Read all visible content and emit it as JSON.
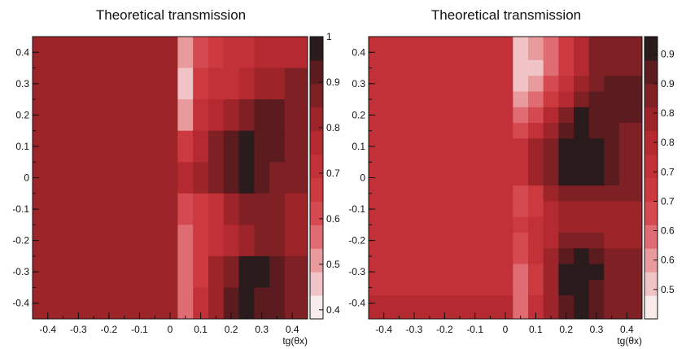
{
  "chart_data": [
    {
      "type": "heatmap",
      "title": "Theoretical transmission",
      "xlabel": "tg(θx)",
      "ylabel": "",
      "xlim": [
        -0.45,
        0.45
      ],
      "ylim": [
        -0.45,
        0.45
      ],
      "x_ticks": [
        "-0.4",
        "-0.3",
        "-0.2",
        "-0.1",
        "0",
        "0.1",
        "0.2",
        "0.3",
        "0.4"
      ],
      "y_ticks": [
        "-0.4",
        "-0.3",
        "-0.2",
        "-0.1",
        "0",
        "0.1",
        "0.2",
        "0.3",
        "0.4"
      ],
      "colorbar": {
        "min": 0.38,
        "max": 1.0,
        "tick_labels": [
          "1",
          "0.9",
          "0.8",
          "0.7",
          "0.6",
          "0.5",
          "0.4"
        ],
        "tick_values": [
          1.0,
          0.9,
          0.8,
          0.7,
          0.6,
          0.5,
          0.4
        ]
      },
      "x": [
        -0.4,
        -0.3,
        -0.2,
        -0.1,
        0,
        0.05,
        0.1,
        0.15,
        0.2,
        0.25,
        0.3,
        0.35,
        0.4
      ],
      "y": [
        0.4,
        0.3,
        0.2,
        0.1,
        0,
        -0.1,
        -0.2,
        -0.3,
        -0.4
      ],
      "z": [
        [
          0.8,
          0.8,
          0.8,
          0.8,
          0.8,
          0.5,
          0.62,
          0.66,
          0.7,
          0.73,
          0.76,
          0.78,
          0.78
        ],
        [
          0.8,
          0.8,
          0.8,
          0.8,
          0.8,
          0.48,
          0.64,
          0.7,
          0.74,
          0.78,
          0.8,
          0.82,
          0.85
        ],
        [
          0.8,
          0.8,
          0.8,
          0.8,
          0.8,
          0.52,
          0.7,
          0.76,
          0.82,
          0.87,
          0.9,
          0.9,
          0.88
        ],
        [
          0.8,
          0.8,
          0.8,
          0.8,
          0.8,
          0.68,
          0.78,
          0.86,
          0.92,
          0.97,
          0.93,
          0.9,
          0.88
        ],
        [
          0.8,
          0.8,
          0.8,
          0.8,
          0.8,
          0.78,
          0.82,
          0.88,
          0.92,
          0.98,
          0.92,
          0.88,
          0.86
        ],
        [
          0.8,
          0.8,
          0.8,
          0.8,
          0.8,
          0.6,
          0.68,
          0.74,
          0.8,
          0.86,
          0.88,
          0.86,
          0.84
        ],
        [
          0.8,
          0.8,
          0.8,
          0.8,
          0.8,
          0.56,
          0.64,
          0.72,
          0.78,
          0.84,
          0.88,
          0.86,
          0.82
        ],
        [
          0.8,
          0.8,
          0.8,
          0.8,
          0.8,
          0.54,
          0.66,
          0.8,
          0.88,
          0.96,
          0.98,
          0.92,
          0.86
        ],
        [
          0.82,
          0.82,
          0.82,
          0.82,
          0.82,
          0.55,
          0.72,
          0.82,
          0.9,
          0.95,
          0.94,
          0.9,
          0.86
        ]
      ]
    },
    {
      "type": "heatmap",
      "title": "Theoretical transmission",
      "xlabel": "tg(θx)",
      "ylabel": "",
      "xlim": [
        -0.45,
        0.45
      ],
      "ylim": [
        -0.45,
        0.45
      ],
      "x_ticks": [
        "-0.4",
        "-0.3",
        "-0.2",
        "-0.1",
        "0",
        "0.1",
        "0.2",
        "0.3",
        "0.4"
      ],
      "y_ticks": [
        "-0.4",
        "-0.3",
        "-0.2",
        "-0.1",
        "0",
        "0.1",
        "0.2",
        "0.3",
        "0.4"
      ],
      "colorbar": {
        "min": 0.48,
        "max": 0.96,
        "tick_labels": [
          "0.9",
          "0.9",
          "0.8",
          "0.8",
          "0.7",
          "0.7",
          "0.6",
          "0.6",
          "0.5"
        ],
        "tick_values": [
          0.93,
          0.88,
          0.83,
          0.78,
          0.73,
          0.68,
          0.63,
          0.58,
          0.53
        ]
      },
      "x": [
        -0.35,
        -0.3,
        -0.25,
        -0.2,
        -0.15,
        -0.1,
        -0.05,
        0,
        0.05,
        0.1,
        0.15,
        0.2,
        0.25,
        0.3,
        0.35,
        0.4
      ],
      "y": [
        0.4,
        0.35,
        0.3,
        0.25,
        0.2,
        0.15,
        0.1,
        0.05,
        0,
        -0.05,
        -0.1,
        -0.15,
        -0.2,
        -0.25,
        -0.3,
        -0.35,
        -0.4
      ],
      "z": [
        [
          0.74,
          0.74,
          0.74,
          0.74,
          0.74,
          0.74,
          0.74,
          0.74,
          0.53,
          0.56,
          0.62,
          0.7,
          0.78,
          0.84,
          0.86,
          0.86
        ],
        [
          0.74,
          0.74,
          0.74,
          0.74,
          0.74,
          0.74,
          0.74,
          0.74,
          0.52,
          0.55,
          0.62,
          0.7,
          0.78,
          0.84,
          0.86,
          0.86
        ],
        [
          0.74,
          0.74,
          0.74,
          0.74,
          0.74,
          0.74,
          0.74,
          0.74,
          0.55,
          0.58,
          0.66,
          0.74,
          0.8,
          0.86,
          0.88,
          0.88
        ],
        [
          0.74,
          0.74,
          0.74,
          0.74,
          0.74,
          0.74,
          0.74,
          0.74,
          0.57,
          0.6,
          0.7,
          0.78,
          0.86,
          0.9,
          0.9,
          0.9
        ],
        [
          0.74,
          0.74,
          0.74,
          0.74,
          0.74,
          0.74,
          0.74,
          0.74,
          0.6,
          0.64,
          0.78,
          0.86,
          0.92,
          0.9,
          0.9,
          0.88
        ],
        [
          0.74,
          0.74,
          0.74,
          0.74,
          0.74,
          0.74,
          0.74,
          0.74,
          0.66,
          0.72,
          0.82,
          0.9,
          0.96,
          0.9,
          0.88,
          0.86
        ],
        [
          0.74,
          0.74,
          0.74,
          0.74,
          0.74,
          0.74,
          0.74,
          0.74,
          0.72,
          0.8,
          0.86,
          0.92,
          0.96,
          0.92,
          0.88,
          0.86
        ],
        [
          0.74,
          0.74,
          0.74,
          0.74,
          0.74,
          0.74,
          0.74,
          0.74,
          0.74,
          0.82,
          0.86,
          0.92,
          0.96,
          0.92,
          0.88,
          0.86
        ],
        [
          0.74,
          0.74,
          0.74,
          0.74,
          0.74,
          0.74,
          0.74,
          0.74,
          0.72,
          0.8,
          0.86,
          0.92,
          0.94,
          0.92,
          0.88,
          0.86
        ],
        [
          0.74,
          0.74,
          0.74,
          0.74,
          0.74,
          0.74,
          0.74,
          0.74,
          0.66,
          0.68,
          0.8,
          0.86,
          0.86,
          0.86,
          0.86,
          0.86
        ],
        [
          0.74,
          0.74,
          0.74,
          0.74,
          0.74,
          0.74,
          0.74,
          0.74,
          0.66,
          0.7,
          0.76,
          0.8,
          0.82,
          0.82,
          0.82,
          0.82
        ],
        [
          0.74,
          0.74,
          0.74,
          0.74,
          0.74,
          0.74,
          0.74,
          0.74,
          0.68,
          0.72,
          0.76,
          0.8,
          0.82,
          0.8,
          0.8,
          0.8
        ],
        [
          0.74,
          0.74,
          0.74,
          0.74,
          0.74,
          0.74,
          0.74,
          0.74,
          0.66,
          0.72,
          0.78,
          0.86,
          0.86,
          0.84,
          0.82,
          0.82
        ],
        [
          0.74,
          0.74,
          0.74,
          0.74,
          0.74,
          0.74,
          0.74,
          0.74,
          0.64,
          0.72,
          0.8,
          0.9,
          0.92,
          0.88,
          0.84,
          0.84
        ],
        [
          0.74,
          0.74,
          0.74,
          0.74,
          0.74,
          0.74,
          0.74,
          0.74,
          0.62,
          0.7,
          0.8,
          0.94,
          0.96,
          0.92,
          0.86,
          0.86
        ],
        [
          0.74,
          0.74,
          0.74,
          0.74,
          0.74,
          0.74,
          0.74,
          0.74,
          0.6,
          0.7,
          0.8,
          0.92,
          0.96,
          0.9,
          0.86,
          0.86
        ],
        [
          0.78,
          0.78,
          0.78,
          0.78,
          0.78,
          0.78,
          0.78,
          0.78,
          0.62,
          0.72,
          0.82,
          0.9,
          0.92,
          0.9,
          0.86,
          0.86
        ]
      ]
    }
  ],
  "colors": {
    "palette": [
      "#f7ebeb",
      "#f0c4c6",
      "#e89a9d",
      "#df6c72",
      "#d54a50",
      "#cc3a40",
      "#c23138",
      "#b52a30",
      "#9d2429",
      "#7f2024",
      "#5c1b1e",
      "#2a1b1c"
    ]
  }
}
